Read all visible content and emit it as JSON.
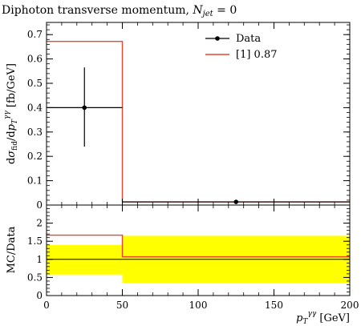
{
  "chart_data": [
    {
      "type": "line",
      "panel": "main",
      "title": "Diphoton transverse momentum, N_jet = 0",
      "title_main": "Diphoton transverse momentum, ",
      "title_var": "N",
      "title_var_sub": "jet",
      "title_tail": " = 0",
      "ylabel": "dσ_fid / dp_T^γγ [fb/GeV]",
      "ylabel_parts": {
        "d1": "d",
        "sigma": "σ",
        "fid": "fid",
        "slash": "/d",
        "p": "p",
        "T": "T",
        "gg": "γγ",
        "unit": " [fb/GeV]"
      },
      "xlim": [
        0,
        200
      ],
      "ylim": [
        0,
        0.75
      ],
      "xticks": [
        0,
        50,
        100,
        150,
        200
      ],
      "yticks": [
        0,
        0.1,
        0.2,
        0.3,
        0.4,
        0.5,
        0.6,
        0.7
      ],
      "ytick_labels": [
        "0",
        "0.1",
        "0.2",
        "0.3",
        "0.4",
        "0.5",
        "0.6",
        "0.7"
      ],
      "bins": [
        [
          0,
          50
        ],
        [
          50,
          200
        ]
      ],
      "series": [
        {
          "name": "Data",
          "style": "points",
          "color": "#000000",
          "points": [
            {
              "x": 25,
              "y": 0.4,
              "xerr": [
                0,
                50
              ],
              "yerr": [
                0.24,
                0.565
              ]
            },
            {
              "x": 125,
              "y": 0.013,
              "xerr": [
                50,
                200
              ],
              "yerr": [
                0.011,
                0.015
              ]
            }
          ]
        },
        {
          "name": "[1] 0.87",
          "style": "step",
          "color": "#e8462d",
          "values": [
            0.672,
            0.013
          ]
        }
      ],
      "legend": {
        "placement": "top-right"
      }
    },
    {
      "type": "area",
      "panel": "ratio",
      "ylabel": "MC/Data",
      "xlabel": "p_T^γγ [GeV]",
      "xlabel_parts": {
        "p": "p",
        "T": "T",
        "gg": "γγ",
        "unit": " [GeV]"
      },
      "xlim": [
        0,
        200
      ],
      "ylim": [
        0,
        2.5
      ],
      "xticks": [
        0,
        50,
        100,
        150,
        200
      ],
      "xtick_labels": [
        "0",
        "50",
        "100",
        "150",
        "200"
      ],
      "yticks": [
        0,
        0.5,
        1,
        1.5,
        2
      ],
      "ytick_labels": [
        "0",
        "0.5",
        "1",
        "1.5",
        "2"
      ],
      "bins": [
        [
          0,
          50
        ],
        [
          50,
          200
        ]
      ],
      "band": {
        "color": "#ffff00",
        "lower": [
          0.58,
          0.35
        ],
        "upper": [
          1.4,
          1.65
        ]
      },
      "reference_line": {
        "y": 1.0,
        "color": "#000000"
      },
      "mc_ratio": {
        "color": "#e8462d",
        "values": [
          1.67,
          1.07
        ]
      }
    }
  ]
}
